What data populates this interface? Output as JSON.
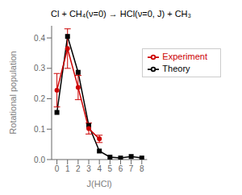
{
  "chart_data": {
    "type": "line",
    "title": "Cl + CH₄(ν=0) → HCl(ν=0, J) + CH₃",
    "xlabel": "J(HCl)",
    "ylabel": "Rotational population",
    "xlim": [
      -0.5,
      8.5
    ],
    "ylim": [
      0.0,
      0.44
    ],
    "xticks": [
      0,
      1,
      2,
      3,
      4,
      5,
      6,
      7,
      8
    ],
    "yticks": [
      {
        "value": 0.0,
        "label": "0.0"
      },
      0.1,
      0.2,
      0.3,
      0.4
    ],
    "legend": "upper right",
    "series": [
      {
        "name": "Theory",
        "color": "#000000",
        "marker": "square",
        "line_style": "solid",
        "x": [
          0,
          1,
          2,
          3,
          4,
          5,
          6,
          7,
          8
        ],
        "values": [
          0.155,
          0.405,
          0.287,
          0.112,
          0.028,
          0.008,
          0.005,
          0.01,
          0.005
        ]
      },
      {
        "name": "Experiment",
        "color": "#cc0000",
        "marker": "circle",
        "line_style": "solid",
        "x": [
          0,
          1,
          2,
          3,
          4
        ],
        "values": [
          0.228,
          0.365,
          0.237,
          0.102,
          0.068
        ],
        "errors": [
          0.055,
          0.065,
          0.04,
          0.018,
          0.012
        ]
      }
    ]
  }
}
